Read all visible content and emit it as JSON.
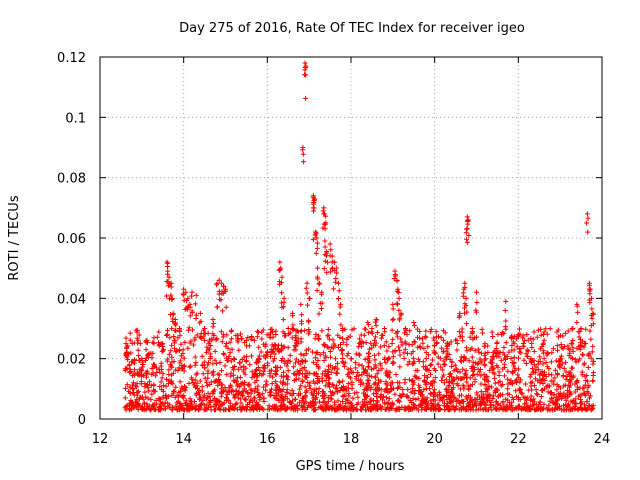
{
  "chart_data": {
    "type": "scatter",
    "title": "Day 275 of 2016, Rate Of TEC Index for receiver igeo",
    "xlabel": "GPS time / hours",
    "ylabel": "ROTI / TECUs",
    "xlim": [
      12,
      24
    ],
    "ylim": [
      0,
      0.12
    ],
    "grid": true,
    "marker": "+",
    "marker_color": "#ff0000",
    "x_ticks": [
      12,
      14,
      16,
      18,
      20,
      22,
      24
    ],
    "y_ticks": [
      0,
      0.02,
      0.04,
      0.06,
      0.08,
      0.1,
      0.12
    ],
    "x_tick_labels": [
      "12",
      "14",
      "16",
      "18",
      "20",
      "22",
      "24"
    ],
    "y_tick_labels": [
      "0",
      "0.02",
      "0.04",
      "0.06",
      "0.08",
      "0.1",
      "0.12"
    ],
    "series": [
      {
        "name": "ROTI",
        "x_range": [
          12.6,
          23.8
        ],
        "typical_range": [
          0.003,
          0.03
        ],
        "points": [
          [
            12.62,
            0.025
          ],
          [
            12.65,
            0.022
          ],
          [
            12.7,
            0.018
          ],
          [
            12.8,
            0.012
          ],
          [
            12.9,
            0.015
          ],
          [
            13.0,
            0.02
          ],
          [
            13.1,
            0.023
          ],
          [
            13.3,
            0.018
          ],
          [
            13.5,
            0.025
          ],
          [
            13.6,
            0.052
          ],
          [
            13.62,
            0.049
          ],
          [
            13.65,
            0.047
          ],
          [
            13.7,
            0.045
          ],
          [
            13.72,
            0.04
          ],
          [
            13.75,
            0.035
          ],
          [
            13.8,
            0.033
          ],
          [
            13.9,
            0.03
          ],
          [
            14.0,
            0.043
          ],
          [
            14.05,
            0.042
          ],
          [
            14.1,
            0.04
          ],
          [
            14.15,
            0.038
          ],
          [
            14.2,
            0.042
          ],
          [
            14.3,
            0.041
          ],
          [
            14.4,
            0.035
          ],
          [
            14.5,
            0.03
          ],
          [
            14.6,
            0.025
          ],
          [
            14.7,
            0.033
          ],
          [
            14.8,
            0.045
          ],
          [
            14.85,
            0.046
          ],
          [
            14.9,
            0.045
          ],
          [
            14.95,
            0.044
          ],
          [
            15.0,
            0.043
          ],
          [
            15.2,
            0.02
          ],
          [
            15.5,
            0.026
          ],
          [
            15.8,
            0.02
          ],
          [
            16.0,
            0.022
          ],
          [
            16.2,
            0.028
          ],
          [
            16.3,
            0.052
          ],
          [
            16.32,
            0.05
          ],
          [
            16.35,
            0.047
          ],
          [
            16.4,
            0.04
          ],
          [
            16.5,
            0.03
          ],
          [
            16.6,
            0.035
          ],
          [
            16.7,
            0.025
          ],
          [
            16.8,
            0.038
          ],
          [
            16.9,
            0.118
          ],
          [
            16.92,
            0.117
          ],
          [
            16.85,
            0.09
          ],
          [
            16.95,
            0.045
          ],
          [
            17.0,
            0.04
          ],
          [
            17.1,
            0.074
          ],
          [
            17.12,
            0.073
          ],
          [
            17.1,
            0.07
          ],
          [
            17.15,
            0.062
          ],
          [
            17.18,
            0.06
          ],
          [
            17.2,
            0.05
          ],
          [
            17.25,
            0.045
          ],
          [
            17.3,
            0.042
          ],
          [
            17.35,
            0.07
          ],
          [
            17.37,
            0.068
          ],
          [
            17.4,
            0.065
          ],
          [
            17.38,
            0.057
          ],
          [
            17.42,
            0.055
          ],
          [
            17.5,
            0.058
          ],
          [
            17.55,
            0.054
          ],
          [
            17.6,
            0.052
          ],
          [
            17.65,
            0.05
          ],
          [
            17.7,
            0.045
          ],
          [
            17.75,
            0.038
          ],
          [
            17.8,
            0.03
          ],
          [
            18.0,
            0.02
          ],
          [
            18.2,
            0.025
          ],
          [
            18.4,
            0.032
          ],
          [
            18.5,
            0.03
          ],
          [
            18.6,
            0.033
          ],
          [
            18.8,
            0.03
          ],
          [
            19.0,
            0.038
          ],
          [
            19.05,
            0.049
          ],
          [
            19.1,
            0.046
          ],
          [
            19.12,
            0.043
          ],
          [
            19.15,
            0.04
          ],
          [
            19.2,
            0.035
          ],
          [
            19.3,
            0.03
          ],
          [
            19.5,
            0.032
          ],
          [
            19.8,
            0.02
          ],
          [
            20.0,
            0.022
          ],
          [
            20.3,
            0.025
          ],
          [
            20.6,
            0.035
          ],
          [
            20.7,
            0.043
          ],
          [
            20.72,
            0.045
          ],
          [
            20.75,
            0.04
          ],
          [
            20.78,
            0.067
          ],
          [
            20.8,
            0.066
          ],
          [
            20.77,
            0.063
          ],
          [
            20.9,
            0.03
          ],
          [
            21.0,
            0.042
          ],
          [
            21.2,
            0.025
          ],
          [
            21.5,
            0.022
          ],
          [
            21.7,
            0.039
          ],
          [
            21.9,
            0.025
          ],
          [
            22.0,
            0.028
          ],
          [
            22.3,
            0.02
          ],
          [
            22.6,
            0.028
          ],
          [
            22.8,
            0.022
          ],
          [
            23.0,
            0.02
          ],
          [
            23.3,
            0.03
          ],
          [
            23.4,
            0.038
          ],
          [
            23.5,
            0.03
          ],
          [
            23.65,
            0.068
          ],
          [
            23.7,
            0.045
          ],
          [
            23.72,
            0.043
          ],
          [
            23.75,
            0.04
          ],
          [
            23.78,
            0.035
          ]
        ]
      }
    ]
  }
}
